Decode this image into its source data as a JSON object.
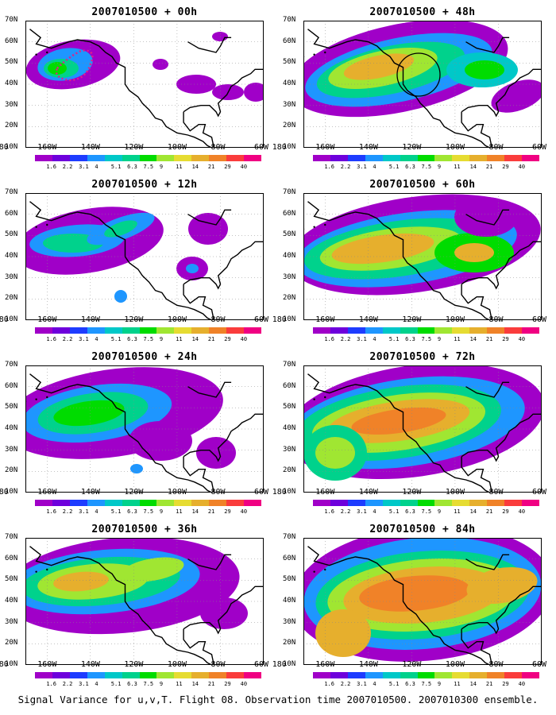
{
  "panels": [
    {
      "title": "2007010500 + 00h"
    },
    {
      "title": "2007010500 + 48h"
    },
    {
      "title": "2007010500 + 12h"
    },
    {
      "title": "2007010500 + 60h"
    },
    {
      "title": "2007010500 + 24h"
    },
    {
      "title": "2007010500 + 72h"
    },
    {
      "title": "2007010500 + 36h"
    },
    {
      "title": "2007010500 + 84h"
    }
  ],
  "lat_labels": [
    "70N",
    "60N",
    "50N",
    "40N",
    "30N",
    "20N",
    "10N"
  ],
  "lon_labels": [
    "180",
    "160W",
    "140W",
    "120W",
    "100W",
    "80W",
    "60W"
  ],
  "colorbar": {
    "labels": [
      "1.6",
      "2.2",
      "3.1",
      "4",
      "5.1",
      "6.3",
      "7.5",
      "9",
      "11",
      "14",
      "21",
      "29",
      "40"
    ],
    "colors": [
      "#a000c8",
      "#6e00dc",
      "#1e3cff",
      "#1e96ff",
      "#00c8c8",
      "#00d28c",
      "#00dc00",
      "#a0e632",
      "#e6dc32",
      "#e6af2d",
      "#f08228",
      "#fa3c3c",
      "#f00082"
    ]
  },
  "caption": "Signal Variance for u,v,T. Flight 08. Observation time 2007010500. 2007010300 ensemble.",
  "map_features": [
    "coastlines",
    "dashed-grid",
    "colour-shaded-variance",
    "observation-track-dots-00h",
    "circle-marker-48h"
  ]
}
